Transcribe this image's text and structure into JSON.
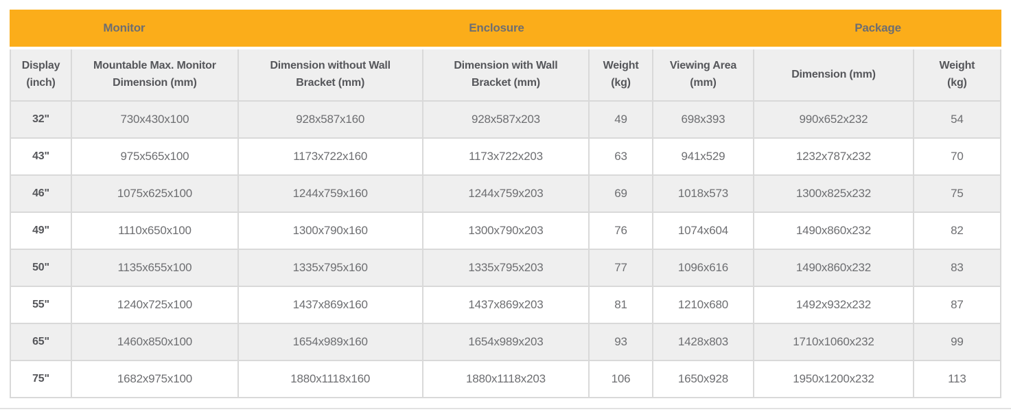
{
  "colors": {
    "accent_orange": "#fbad1a",
    "alt_row_bg": "#efefef",
    "grid_border": "#d9d9d9",
    "header_text": "#55565a",
    "body_text": "#6d6e71"
  },
  "spec_table": {
    "groups": [
      {
        "label": "Monitor",
        "colspan": 2
      },
      {
        "label": "Enclosure",
        "colspan": 4
      },
      {
        "label": "Package",
        "colspan": 2
      }
    ],
    "columns": [
      {
        "label": "Display\n(inch)"
      },
      {
        "label": "Mountable Max. Monitor\nDimension (mm)"
      },
      {
        "label": "Dimension without Wall\nBracket (mm)"
      },
      {
        "label": "Dimension with Wall\nBracket (mm)"
      },
      {
        "label": "Weight\n(kg)"
      },
      {
        "label": "Viewing Area\n(mm)"
      },
      {
        "label": "Dimension (mm)"
      },
      {
        "label": "Weight\n(kg)"
      }
    ],
    "rows": [
      {
        "cells": [
          "32\"",
          "730x430x100",
          "928x587x160",
          "928x587x203",
          "49",
          "698x393",
          "990x652x232",
          "54"
        ]
      },
      {
        "cells": [
          "43\"",
          "975x565x100",
          "1173x722x160",
          "1173x722x203",
          "63",
          "941x529",
          "1232x787x232",
          "70"
        ]
      },
      {
        "cells": [
          "46\"",
          "1075x625x100",
          "1244x759x160",
          "1244x759x203",
          "69",
          "1018x573",
          "1300x825x232",
          "75"
        ]
      },
      {
        "cells": [
          "49\"",
          "1110x650x100",
          "1300x790x160",
          "1300x790x203",
          "76",
          "1074x604",
          "1490x860x232",
          "82"
        ]
      },
      {
        "cells": [
          "50\"",
          "1135x655x100",
          "1335x795x160",
          "1335x795x203",
          "77",
          "1096x616",
          "1490x860x232",
          "83"
        ]
      },
      {
        "cells": [
          "55\"",
          "1240x725x100",
          "1437x869x160",
          "1437x869x203",
          "81",
          "1210x680",
          "1492x932x232",
          "87"
        ]
      },
      {
        "cells": [
          "65\"",
          "1460x850x100",
          "1654x989x160",
          "1654x989x203",
          "93",
          "1428x803",
          "1710x1060x232",
          "99"
        ]
      },
      {
        "cells": [
          "75\"",
          "1682x975x100",
          "1880x1118x160",
          "1880x1118x203",
          "106",
          "1650x928",
          "1950x1200x232",
          "113"
        ]
      }
    ]
  }
}
